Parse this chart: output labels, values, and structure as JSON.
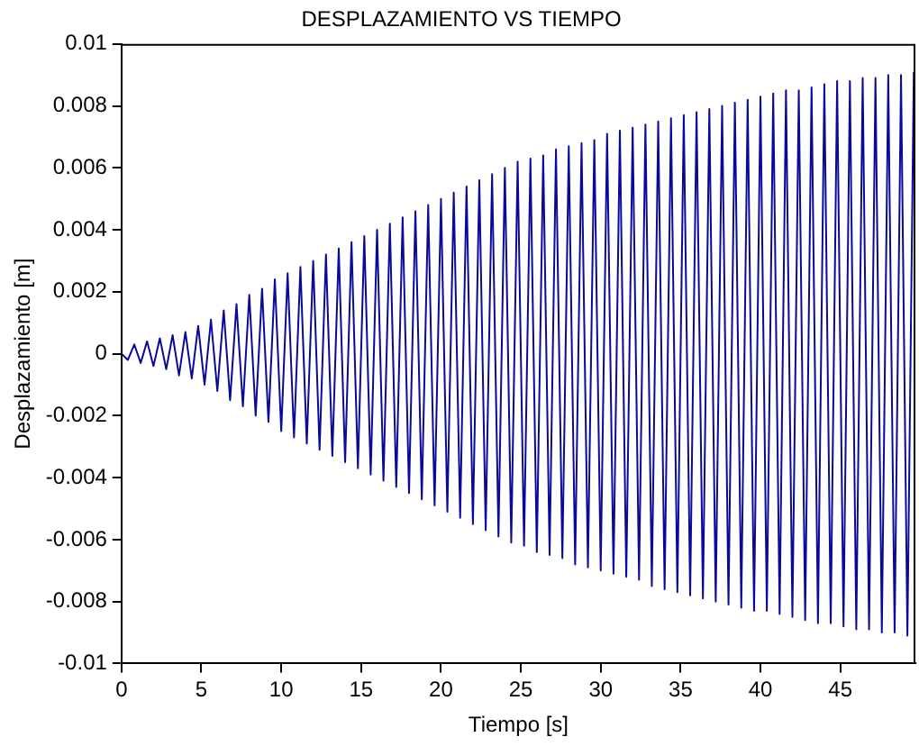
{
  "chart_data": {
    "type": "line",
    "title": "DESPLAZAMIENTO VS TIEMPO",
    "xlabel": "Tiempo [s]",
    "ylabel": "Desplazamiento [m]",
    "x": [
      0,
      0.4,
      0.8,
      1.2,
      1.6,
      2,
      2.4,
      2.8,
      3.2,
      3.6,
      4,
      4.4,
      4.8,
      5.2,
      5.6,
      6,
      6.4,
      6.8,
      7.2,
      7.6,
      8,
      8.4,
      8.8,
      9.2,
      9.6,
      10,
      10.4,
      10.8,
      11.2,
      11.6,
      12,
      12.4,
      12.8,
      13.2,
      13.6,
      14,
      14.4,
      14.8,
      15.2,
      15.6,
      16,
      16.4,
      16.8,
      17.2,
      17.6,
      18,
      18.4,
      18.8,
      19.2,
      19.6,
      20,
      20.4,
      20.8,
      21.2,
      21.6,
      22,
      22.4,
      22.8,
      23.2,
      23.6,
      24,
      24.4,
      24.8,
      25.2,
      25.6,
      26,
      26.4,
      26.8,
      27.2,
      27.6,
      28,
      28.4,
      28.8,
      29.2,
      29.6,
      30,
      30.4,
      30.8,
      31.2,
      31.6,
      32,
      32.4,
      32.8,
      33.2,
      33.6,
      34,
      34.4,
      34.8,
      35.2,
      35.6,
      36,
      36.4,
      36.8,
      37.2,
      37.6,
      38,
      38.4,
      38.8,
      39.2,
      39.6,
      40,
      40.4,
      40.8,
      41.2,
      41.6,
      42,
      42.4,
      42.8,
      43.2,
      43.6,
      44,
      44.4,
      44.8,
      45.2,
      45.6,
      46,
      46.4,
      46.8,
      47.2,
      47.6,
      48,
      48.4,
      48.8,
      49.2,
      49.6
    ],
    "series": [
      {
        "color": "#0a0a9a",
        "values": [
          0,
          -0.0002,
          0.0003,
          -0.0003,
          0.0004,
          -0.0004,
          0.0005,
          -0.0005,
          0.0006,
          -0.0007,
          0.0007,
          -0.0008,
          0.0009,
          -0.001,
          0.0011,
          -0.0012,
          0.0014,
          -0.0015,
          0.0016,
          -0.0017,
          0.0019,
          -0.002,
          0.0021,
          -0.0022,
          0.0024,
          -0.0025,
          0.0026,
          -0.0027,
          0.0028,
          -0.0029,
          0.003,
          -0.0031,
          0.0032,
          -0.0033,
          0.0034,
          -0.0035,
          0.0036,
          -0.0037,
          0.0038,
          -0.0039,
          0.004,
          -0.0041,
          0.0042,
          -0.0043,
          0.0044,
          -0.0045,
          0.0046,
          -0.0047,
          0.0048,
          -0.0049,
          0.005,
          -0.0051,
          0.0052,
          -0.0053,
          0.0054,
          -0.0055,
          0.0056,
          -0.0057,
          0.0058,
          -0.0059,
          0.006,
          -0.0061,
          0.0062,
          -0.0062,
          0.0063,
          -0.0064,
          0.0064,
          -0.0065,
          0.0066,
          -0.0066,
          0.0067,
          -0.0068,
          0.0068,
          -0.0069,
          0.0069,
          -0.007,
          0.0071,
          -0.0071,
          0.0072,
          -0.0072,
          0.0073,
          -0.0073,
          0.0074,
          -0.0075,
          0.0075,
          -0.0076,
          0.0076,
          -0.0077,
          0.0077,
          -0.0078,
          0.0078,
          -0.0079,
          0.0079,
          -0.008,
          0.008,
          -0.0081,
          0.0081,
          -0.0082,
          0.0082,
          -0.0083,
          0.0083,
          -0.0083,
          0.0084,
          -0.0084,
          0.0085,
          -0.0085,
          0.0085,
          -0.0086,
          0.0086,
          -0.0087,
          0.0087,
          -0.0087,
          0.0088,
          -0.0088,
          0.0088,
          -0.0089,
          0.0089,
          -0.0089,
          0.0089,
          -0.009,
          0.009,
          -0.009,
          0.009,
          -0.0091,
          0.0091
        ]
      }
    ],
    "xlim": [
      0,
      49.7
    ],
    "xticks": [
      0,
      5,
      10,
      15,
      20,
      25,
      30,
      35,
      40,
      45
    ],
    "ylim": [
      -0.01,
      0.01
    ],
    "yticks": [
      -0.01,
      -0.008,
      -0.006,
      -0.004,
      -0.002,
      0,
      0.002,
      0.004,
      0.006,
      0.008,
      0.01
    ],
    "grid": false,
    "legend": false,
    "marker": "none",
    "line_style": "solid"
  }
}
